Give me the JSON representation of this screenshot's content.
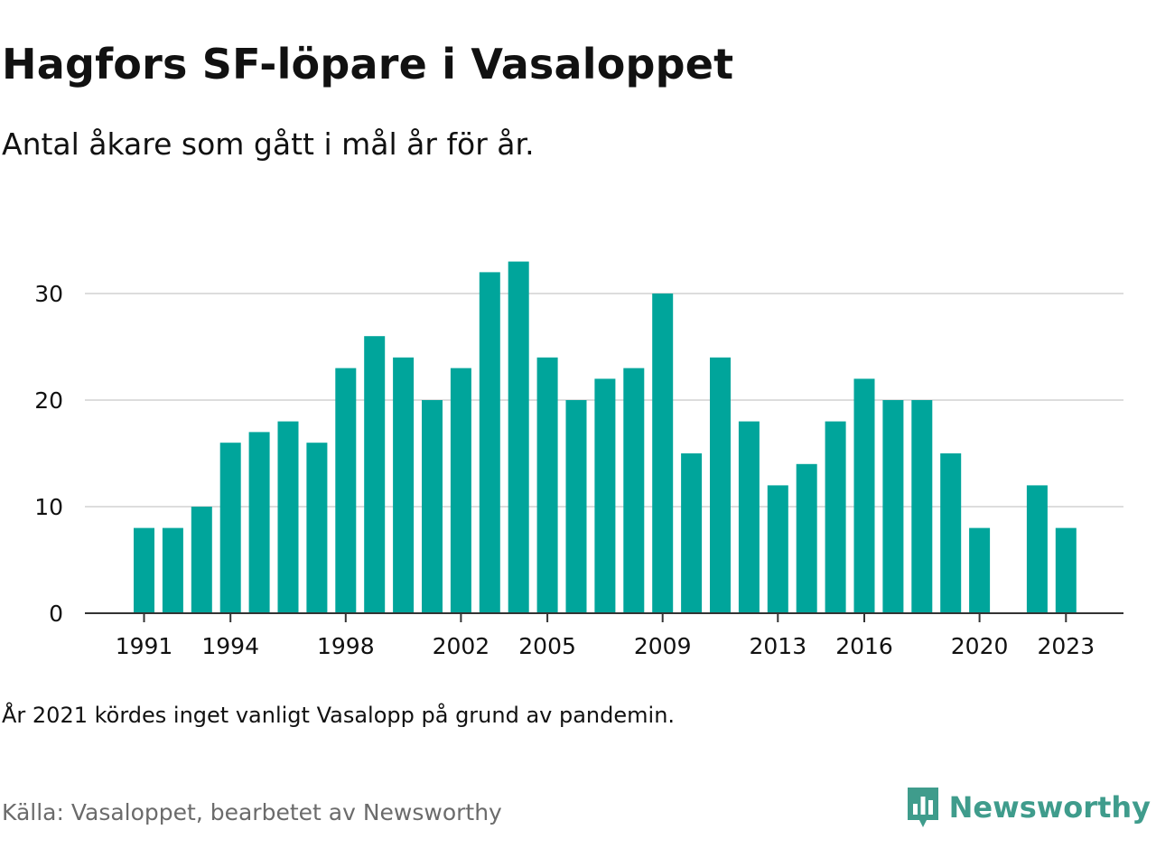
{
  "title": "Hagfors SF-löpare i Vasaloppet",
  "subtitle": "Antal åkare som gått i mål år för år.",
  "note": "År 2021 kördes inget vanligt Vasalopp på grund av pandemin.",
  "source": "Källa: Vasaloppet, bearbetet av Newsworthy",
  "brand": {
    "name": "Newsworthy",
    "color": "#3f9c8c",
    "icon": "newsworthy-logo-icon"
  },
  "colors": {
    "bar": "#00a59b",
    "grid": "#dddddd",
    "axis": "#333333",
    "text": "#111111",
    "source": "#6b6b6b"
  },
  "chart_data": {
    "type": "bar",
    "categories": [
      1991,
      1992,
      1993,
      1994,
      1995,
      1996,
      1997,
      1998,
      1999,
      2000,
      2001,
      2002,
      2003,
      2004,
      2005,
      2006,
      2007,
      2008,
      2009,
      2010,
      2011,
      2012,
      2013,
      2014,
      2015,
      2016,
      2017,
      2018,
      2019,
      2020,
      2021,
      2022,
      2023
    ],
    "values": [
      8,
      8,
      10,
      16,
      17,
      18,
      16,
      23,
      26,
      24,
      20,
      23,
      32,
      33,
      24,
      20,
      22,
      23,
      30,
      15,
      24,
      18,
      12,
      14,
      18,
      22,
      20,
      20,
      15,
      8,
      null,
      12,
      8
    ],
    "x_ticks": [
      1991,
      1994,
      1998,
      2002,
      2005,
      2009,
      2013,
      2016,
      2020,
      2023
    ],
    "y_ticks": [
      0,
      10,
      20,
      30
    ],
    "ylim": [
      0,
      33
    ],
    "grid": true,
    "legend": "none",
    "xlabel": "",
    "ylabel": ""
  }
}
